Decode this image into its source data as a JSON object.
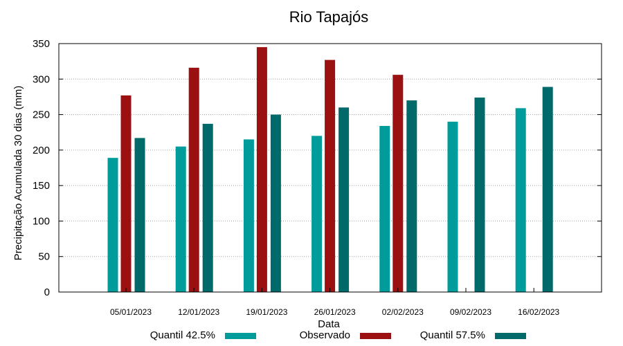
{
  "chart_data": {
    "type": "bar",
    "title": "Rio Tapajós",
    "xlabel": "Data",
    "ylabel": "Precipitação Acumulada 30 dias (mm)",
    "ylim": [
      0,
      350
    ],
    "yticks": [
      0,
      50,
      100,
      150,
      200,
      250,
      300,
      350
    ],
    "grid": true,
    "legend_placement": "bottom",
    "categories": [
      "05/01/2023",
      "12/01/2023",
      "19/01/2023",
      "26/01/2023",
      "02/02/2023",
      "09/02/2023",
      "16/02/2023"
    ],
    "series": [
      {
        "name": "Quantil 42.5%",
        "color": "#009b9b",
        "values": [
          189,
          205,
          215,
          220,
          234,
          240,
          259
        ]
      },
      {
        "name": "Observado",
        "color": "#9b1010",
        "values": [
          277,
          316,
          345,
          327,
          306,
          null,
          null
        ]
      },
      {
        "name": "Quantil 57.5%",
        "color": "#006a6a",
        "values": [
          217,
          237,
          250,
          260,
          270,
          274,
          289
        ]
      }
    ]
  }
}
